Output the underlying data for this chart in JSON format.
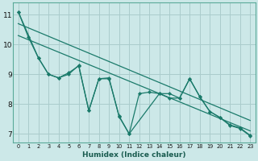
{
  "xlabel": "Humidex (Indice chaleur)",
  "bg_color": "#cce8e8",
  "grid_color": "#aacccc",
  "line_color": "#1a7a6a",
  "xlim": [
    -0.5,
    23.5
  ],
  "ylim": [
    6.7,
    11.4
  ],
  "xticks": [
    0,
    1,
    2,
    3,
    4,
    5,
    6,
    7,
    8,
    9,
    10,
    11,
    12,
    13,
    14,
    15,
    16,
    17,
    18,
    19,
    20,
    21,
    22,
    23
  ],
  "yticks": [
    7,
    8,
    9,
    10,
    11
  ],
  "line1_x": [
    0,
    1,
    2,
    3,
    4,
    5,
    6,
    7,
    8,
    9,
    10,
    11,
    12,
    13,
    14,
    15,
    16,
    17,
    18,
    19,
    20,
    21,
    22,
    23
  ],
  "line1_y": [
    11.1,
    10.25,
    9.55,
    9.0,
    8.88,
    9.0,
    9.3,
    7.78,
    8.85,
    8.85,
    7.6,
    7.0,
    8.35,
    8.4,
    8.35,
    8.35,
    8.2,
    8.85,
    8.25,
    7.75,
    7.55,
    7.3,
    7.2,
    6.95
  ],
  "line2_x": [
    0,
    2,
    3,
    4,
    5,
    6,
    7,
    8,
    9,
    10,
    11,
    14,
    15,
    16,
    17,
    18,
    19,
    20,
    21,
    22,
    23
  ],
  "line2_y": [
    11.1,
    9.55,
    9.0,
    8.88,
    9.05,
    9.28,
    7.78,
    8.85,
    8.88,
    7.58,
    7.0,
    8.35,
    8.2,
    8.2,
    8.85,
    8.25,
    7.75,
    7.55,
    7.28,
    7.18,
    6.93
  ],
  "trend1_x": [
    0,
    23
  ],
  "trend1_y": [
    10.7,
    7.45
  ],
  "trend2_x": [
    0,
    23
  ],
  "trend2_y": [
    10.3,
    7.1
  ]
}
